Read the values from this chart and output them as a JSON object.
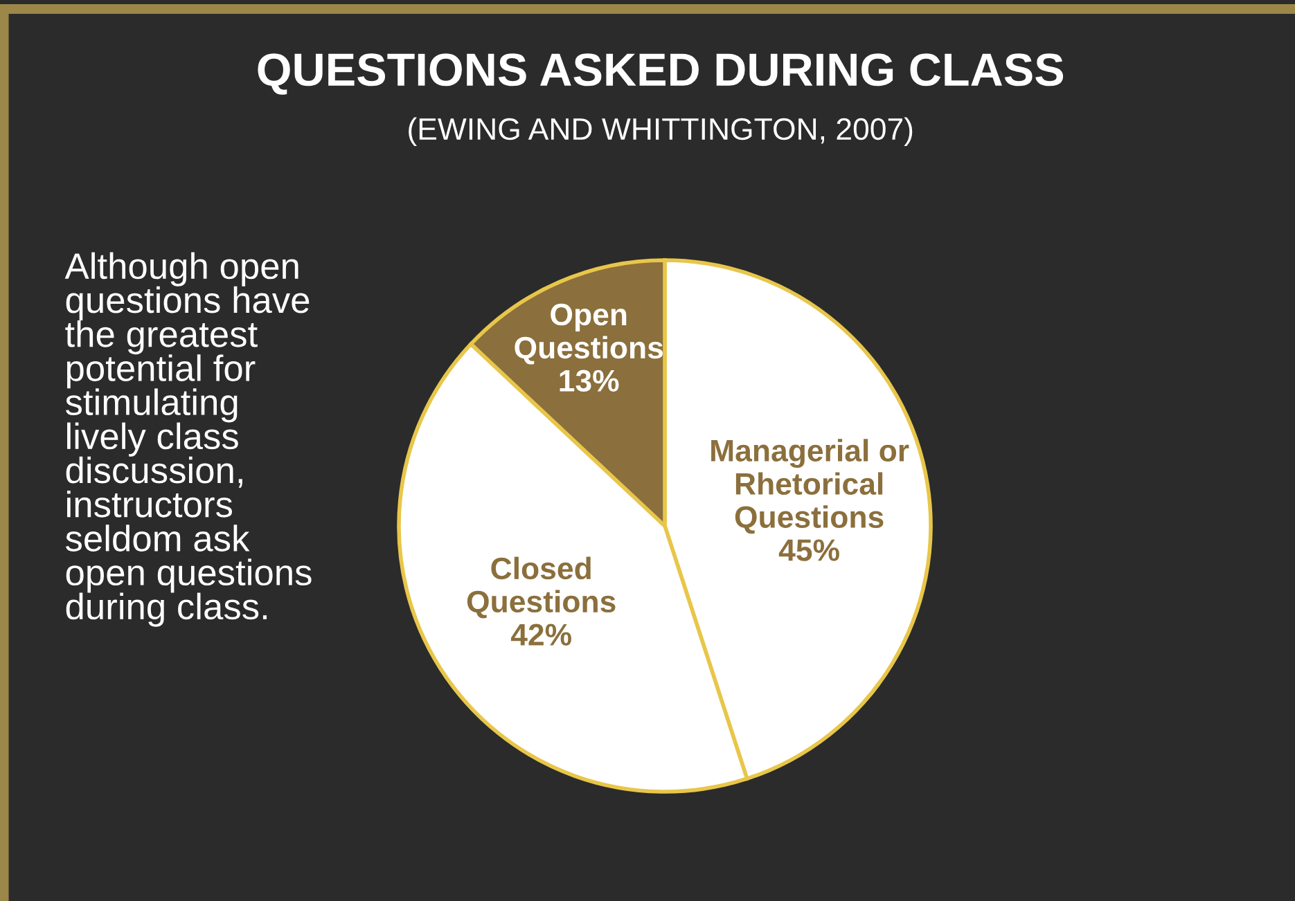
{
  "chart_data": {
    "type": "pie",
    "title": "QUESTIONS ASKED DURING CLASS",
    "subtitle": "(EWING AND WHITTINGTON, 2007)",
    "categories": [
      "Managerial or\nRhetorical\nQuestions",
      "Closed\nQuestions",
      "Open\nQuestions"
    ],
    "values": [
      45,
      42,
      13
    ],
    "value_labels": [
      "45%",
      "42%",
      "13%"
    ],
    "colors": [
      "#ffffff",
      "#ffffff",
      "#8b6f3c"
    ],
    "annotations": [
      "Although open\nquestions have\nthe greatest\npotential for\nstimulating\nlively class\ndiscussion,\ninstructors\nseldom ask\nopen questions\nduring class."
    ]
  }
}
